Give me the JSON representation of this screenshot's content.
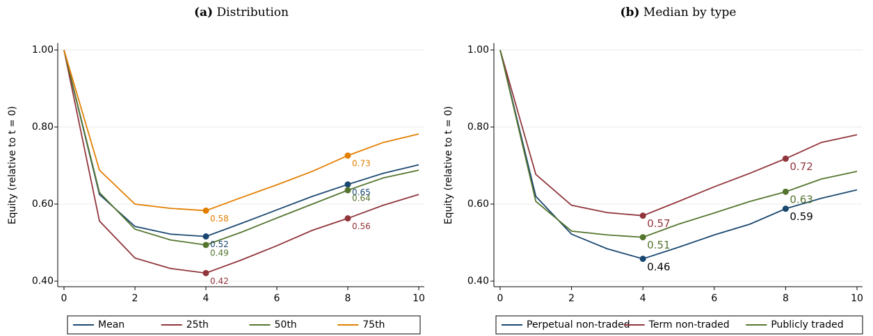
{
  "chart_data": [
    {
      "type": "line",
      "panel": "(a)",
      "title": "Distribution",
      "ylabel": "Equity (relative to t = 0)",
      "x": [
        0,
        1,
        2,
        3,
        4,
        5,
        6,
        7,
        8,
        9,
        10
      ],
      "xlim": [
        0,
        10
      ],
      "xticks": [
        0,
        2,
        4,
        6,
        8,
        10
      ],
      "ylim": [
        0.4,
        1.0
      ],
      "yticks": [
        {
          "value": 0.4,
          "label": "0.40"
        },
        {
          "value": 0.6,
          "label": "0.60"
        },
        {
          "value": 0.8,
          "label": "0.80"
        },
        {
          "value": 1.0,
          "label": "1.00"
        }
      ],
      "grid": true,
      "legend": "bottom",
      "series": [
        {
          "name": "Mean",
          "color": "#1a476f",
          "values": [
            1.0,
            0.625,
            0.542,
            0.522,
            0.516,
            0.55,
            0.585,
            0.62,
            0.651,
            0.68,
            0.702
          ],
          "value_labels": [
            null,
            null,
            null,
            null,
            "0.52",
            null,
            null,
            null,
            "0.65",
            null,
            null
          ]
        },
        {
          "name": "25th",
          "color": "#90353b",
          "values": [
            1.0,
            0.556,
            0.46,
            0.433,
            0.421,
            0.455,
            0.492,
            0.532,
            0.563,
            0.597,
            0.625
          ],
          "value_labels": [
            null,
            null,
            null,
            null,
            "0.42",
            null,
            null,
            null,
            "0.56",
            null,
            null
          ]
        },
        {
          "name": "50th",
          "color": "#55752f",
          "values": [
            1.0,
            0.63,
            0.535,
            0.507,
            0.494,
            0.527,
            0.564,
            0.6,
            0.636,
            0.668,
            0.688
          ],
          "value_labels": [
            null,
            null,
            null,
            null,
            "0.49",
            null,
            null,
            null,
            "0.64",
            null,
            null
          ]
        },
        {
          "name": "75th",
          "color": "#e37e00",
          "values": [
            1.0,
            0.688,
            0.6,
            0.589,
            0.583,
            0.617,
            0.65,
            0.685,
            0.726,
            0.76,
            0.782
          ],
          "value_labels": [
            null,
            null,
            null,
            null,
            "0.58",
            null,
            null,
            null,
            "0.73",
            null,
            null
          ]
        }
      ]
    },
    {
      "type": "line",
      "panel": "(b)",
      "title": "Median by type",
      "ylabel": "Equity (relative to t = 0)",
      "x": [
        0,
        1,
        2,
        3,
        4,
        5,
        6,
        7,
        8,
        9,
        10
      ],
      "xlim": [
        0,
        10
      ],
      "xticks": [
        0,
        2,
        4,
        6,
        8,
        10
      ],
      "ylim": [
        0.4,
        1.0
      ],
      "yticks": [
        {
          "value": 0.4,
          "label": "0.40"
        },
        {
          "value": 0.6,
          "label": "0.60"
        },
        {
          "value": 0.8,
          "label": "0.80"
        },
        {
          "value": 1.0,
          "label": "1.00"
        }
      ],
      "grid": true,
      "legend": "bottom",
      "series": [
        {
          "name": "Perpetual non-traded",
          "color": "#1a476f",
          "label_color": "#000000",
          "values": [
            1.0,
            0.62,
            0.522,
            0.484,
            0.458,
            0.488,
            0.52,
            0.548,
            0.588,
            0.615,
            0.637
          ],
          "value_labels": [
            null,
            null,
            null,
            null,
            "0.46",
            null,
            null,
            null,
            "0.59",
            null,
            null
          ]
        },
        {
          "name": "Term non-traded",
          "color": "#90353b",
          "label_color": "#90353b",
          "values": [
            1.0,
            0.677,
            0.597,
            0.578,
            0.57,
            0.607,
            0.645,
            0.68,
            0.718,
            0.76,
            0.78
          ],
          "value_labels": [
            null,
            null,
            null,
            null,
            "0.57",
            null,
            null,
            null,
            "0.72",
            null,
            null
          ]
        },
        {
          "name": "Publicly traded",
          "color": "#55752f",
          "label_color": "#55752f",
          "values": [
            1.0,
            0.607,
            0.53,
            0.52,
            0.514,
            0.548,
            0.577,
            0.607,
            0.632,
            0.665,
            0.685
          ],
          "value_labels": [
            null,
            null,
            null,
            null,
            "0.51",
            null,
            null,
            null,
            "0.63",
            null,
            null
          ]
        }
      ]
    }
  ]
}
